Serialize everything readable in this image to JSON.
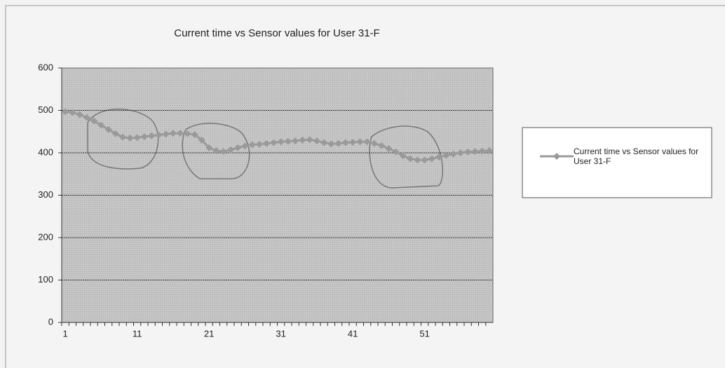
{
  "chart_data": {
    "type": "line",
    "title": "Current time vs Sensor values for User 31-F",
    "categories": [
      1,
      null,
      null,
      null,
      null,
      null,
      null,
      null,
      null,
      null,
      11,
      null,
      null,
      null,
      null,
      null,
      null,
      null,
      null,
      null,
      21,
      null,
      null,
      null,
      null,
      null,
      null,
      null,
      null,
      null,
      31,
      null,
      null,
      null,
      null,
      null,
      null,
      null,
      null,
      null,
      41,
      null,
      null,
      null,
      null,
      null,
      null,
      null,
      null,
      null,
      51,
      null,
      null,
      null,
      null,
      null,
      null,
      null,
      null,
      null
    ],
    "series": [
      {
        "name": "Current time vs Sensor values for User 31-F",
        "color": "#9a9a9a",
        "values": [
          497,
          495,
          490,
          483,
          475,
          465,
          455,
          445,
          437,
          435,
          436,
          438,
          440,
          442,
          444,
          446,
          446,
          445,
          443,
          430,
          412,
          405,
          403,
          407,
          412,
          416,
          419,
          420,
          422,
          424,
          426,
          427,
          428,
          430,
          431,
          428,
          424,
          421,
          422,
          424,
          425,
          426,
          426,
          422,
          417,
          410,
          402,
          393,
          386,
          383,
          383,
          386,
          390,
          394,
          397,
          400,
          402,
          403,
          404,
          405
        ]
      }
    ],
    "ylim": [
      0,
      600
    ],
    "yticks": [
      0,
      100,
      200,
      300,
      400,
      500,
      600
    ],
    "grid": true,
    "legend": "right"
  }
}
